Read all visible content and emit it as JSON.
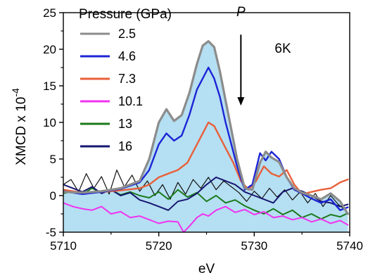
{
  "chart_data": {
    "type": "line",
    "xlabel": "eV",
    "ylabel_main": "XMCD  x 10",
    "ylabel_exponent": "-4",
    "xlim": [
      5710,
      5740
    ],
    "ylim": [
      -5,
      25
    ],
    "xticks": [
      5710,
      5720,
      5730,
      5740
    ],
    "yticks": [
      -5,
      0,
      5,
      10,
      15,
      20,
      25
    ],
    "grid": false,
    "legend": {
      "title": "Pressure (GPa)",
      "placement": "top-left"
    },
    "annotations": [
      {
        "text": "P",
        "x": 5728.6,
        "y": 24.5,
        "style": "italic"
      },
      {
        "text": "6K",
        "x": 5733.0,
        "y": 19.5
      }
    ],
    "arrow": {
      "x": 5728.6,
      "y_from": 22.0,
      "y_to": 12.3
    },
    "series": [
      {
        "name": "2.5",
        "color": "#8c8c8c",
        "fill": "#b5dff2",
        "width": 3.2,
        "x": [
          5710,
          5712,
          5714,
          5716,
          5718,
          5719,
          5720,
          5720.8,
          5721.6,
          5722.4,
          5723.2,
          5724,
          5724.6,
          5725.2,
          5725.8,
          5726.4,
          5727,
          5727.6,
          5728.2,
          5729,
          5729.8,
          5730.6,
          5731.2,
          5731.8,
          5732.6,
          5733.4,
          5734.2,
          5735,
          5736,
          5737,
          5738,
          5739,
          5739.8
        ],
        "y": [
          0.5,
          0.4,
          0.6,
          1.0,
          2.0,
          5.0,
          10.0,
          11.8,
          10.2,
          11.0,
          14.0,
          18.0,
          20.5,
          21.1,
          20.3,
          17.0,
          13.0,
          9.0,
          5.0,
          1.0,
          0.8,
          4.5,
          6.0,
          5.2,
          4.6,
          2.5,
          1.0,
          0.4,
          0.0,
          -0.5,
          0.3,
          -0.8,
          -2.5
        ]
      },
      {
        "name": "4.6",
        "color": "#1c24d6",
        "width": 2.4,
        "x": [
          5710,
          5712,
          5714,
          5716,
          5718,
          5719,
          5720,
          5720.8,
          5721.6,
          5722.4,
          5723.2,
          5724,
          5724.6,
          5725.2,
          5725.8,
          5726.4,
          5727,
          5727.6,
          5728.2,
          5729,
          5729.8,
          5730.6,
          5731.2,
          5731.8,
          5732.6,
          5733.4,
          5734.2,
          5735,
          5736,
          5737,
          5738,
          5739,
          5739.8
        ],
        "y": [
          0.6,
          0.2,
          0.5,
          0.9,
          1.8,
          3.5,
          7.0,
          8.5,
          7.5,
          8.2,
          11.0,
          14.5,
          16.0,
          17.5,
          16.0,
          13.5,
          10.0,
          7.0,
          4.0,
          0.8,
          1.5,
          5.8,
          4.8,
          6.0,
          5.0,
          2.5,
          0.8,
          0.3,
          -0.4,
          -1.0,
          -0.5,
          -2.0,
          -1.6
        ]
      },
      {
        "name": "7.3",
        "color": "#e8603a",
        "width": 2.4,
        "x": [
          5710,
          5712,
          5714,
          5716,
          5718,
          5719,
          5720,
          5721,
          5722,
          5723,
          5723.8,
          5724.6,
          5725.2,
          5725.8,
          5726.4,
          5727,
          5727.8,
          5728.6,
          5729.4,
          5730.2,
          5731,
          5731.8,
          5732.6,
          5733.4,
          5734.2,
          5735,
          5736,
          5737,
          5738,
          5739,
          5739.8
        ],
        "y": [
          0.8,
          0.4,
          0.5,
          0.7,
          1.0,
          1.5,
          2.5,
          3.0,
          3.5,
          4.5,
          6.5,
          8.5,
          10.0,
          9.5,
          8.0,
          6.5,
          4.5,
          2.0,
          0.8,
          2.0,
          4.0,
          3.0,
          2.6,
          3.5,
          1.5,
          0.2,
          0.5,
          0.8,
          1.0,
          1.8,
          2.2
        ]
      },
      {
        "name": "10.1",
        "color": "#f033f0",
        "width": 2.0,
        "x": [
          5710,
          5711,
          5712,
          5713,
          5714,
          5715,
          5716,
          5717,
          5718,
          5719,
          5720,
          5721,
          5722,
          5722.6,
          5723.2,
          5724,
          5724.6,
          5725.2,
          5726,
          5727,
          5728,
          5729,
          5730,
          5731,
          5732,
          5733,
          5734,
          5735,
          5736,
          5737,
          5738,
          5739,
          5739.8
        ],
        "y": [
          -1.0,
          -1.5,
          -1.8,
          -2.0,
          -1.5,
          -2.5,
          -2.2,
          -3.0,
          -2.8,
          -3.3,
          -3.8,
          -3.5,
          -3.6,
          -5.0,
          -4.2,
          -3.0,
          -2.5,
          -2.8,
          -2.0,
          -1.5,
          -2.3,
          -1.9,
          -2.6,
          -2.2,
          -3.0,
          -2.8,
          -3.3,
          -3.0,
          -3.6,
          -3.2,
          -3.8,
          -3.4,
          -4.0
        ]
      },
      {
        "name": "13",
        "color": "#1a7a1a",
        "width": 2.0,
        "x": [
          5710,
          5711,
          5712,
          5713,
          5714,
          5715,
          5716,
          5717,
          5718,
          5719,
          5720,
          5721,
          5722,
          5723,
          5724,
          5725,
          5726,
          5727,
          5728,
          5729,
          5730,
          5731,
          5732,
          5733,
          5734,
          5735,
          5736,
          5737,
          5738,
          5739,
          5739.8
        ],
        "y": [
          0.3,
          0.6,
          0.2,
          1.0,
          0.4,
          0.8,
          0.1,
          0.5,
          0.0,
          -0.3,
          0.5,
          -0.5,
          0.8,
          -0.2,
          0.4,
          -0.8,
          0.0,
          -1.0,
          -0.6,
          -1.4,
          -2.0,
          -2.5,
          -1.8,
          -2.6,
          -2.0,
          -3.0,
          -2.5,
          -3.2,
          -2.6,
          -2.9,
          -2.4
        ]
      },
      {
        "name": "16",
        "color": "#161670",
        "width": 2.0,
        "x": [
          5710,
          5711,
          5712,
          5713,
          5714,
          5715,
          5716,
          5717,
          5718,
          5719,
          5720,
          5721,
          5722,
          5723,
          5724,
          5725,
          5726,
          5727,
          5728,
          5729,
          5730,
          5731,
          5732,
          5733,
          5734,
          5735,
          5736,
          5737,
          5738,
          5739,
          5739.8
        ],
        "y": [
          1.5,
          1.0,
          0.5,
          1.2,
          0.3,
          0.8,
          0.0,
          0.4,
          -0.6,
          -1.0,
          -1.5,
          -2.0,
          -0.8,
          -0.5,
          0.3,
          1.5,
          2.5,
          2.0,
          1.5,
          0.5,
          0.0,
          -0.5,
          -1.0,
          0.5,
          1.0,
          0.6,
          0.0,
          -0.8,
          -1.0,
          -1.5,
          -1.2
        ]
      }
    ],
    "extra_traces": [
      {
        "color": "#111111",
        "width": 1.2,
        "x": [
          5710,
          5710.8,
          5711.6,
          5712.4,
          5713.2,
          5714,
          5714.8,
          5715.6,
          5716.4,
          5717.2,
          5718,
          5718.8,
          5719.6,
          5720.4,
          5721.2,
          5722,
          5722.8,
          5723.6,
          5724.4,
          5725.2,
          5726,
          5726.8,
          5727.6,
          5728.4,
          5729.2,
          5730,
          5730.8,
          5731.6,
          5732.4,
          5733.2,
          5734,
          5734.8,
          5735.6,
          5736.4,
          5737.2,
          5738,
          5738.8,
          5739.6
        ],
        "y": [
          1.5,
          2.2,
          0.5,
          3.0,
          1.0,
          2.6,
          0.2,
          3.5,
          1.2,
          2.8,
          0.6,
          2.0,
          0.0,
          1.5,
          -0.5,
          1.8,
          0.2,
          2.2,
          1.0,
          2.5,
          0.8,
          2.0,
          1.2,
          0.4,
          -0.8,
          0.6,
          -0.4,
          1.0,
          -0.2,
          0.8,
          -0.6,
          0.5,
          -1.0,
          0.3,
          -1.5,
          0.0,
          -1.2,
          -2.0
        ]
      }
    ]
  }
}
